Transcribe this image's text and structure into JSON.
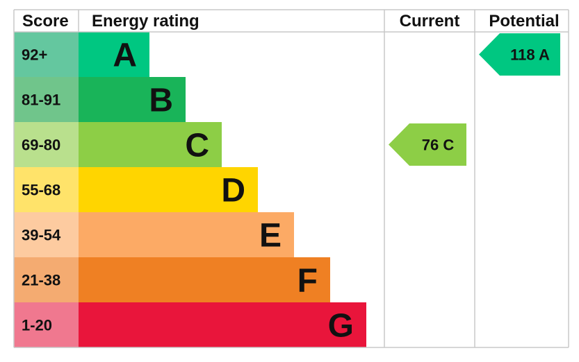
{
  "chart_data": {
    "type": "bar",
    "headers": {
      "score": "Score",
      "rating": "Energy rating",
      "current": "Current",
      "potential": "Potential"
    },
    "bands": [
      {
        "score": "92+",
        "letter": "A",
        "color": "#00c781",
        "score_bg": "#64c79f"
      },
      {
        "score": "81-91",
        "letter": "B",
        "color": "#19b459",
        "score_bg": "#70c58b"
      },
      {
        "score": "69-80",
        "letter": "C",
        "color": "#8dce46",
        "score_bg": "#b9e08d"
      },
      {
        "score": "55-68",
        "letter": "D",
        "color": "#ffd500",
        "score_bg": "#ffe36a"
      },
      {
        "score": "39-54",
        "letter": "E",
        "color": "#fcaa65",
        "score_bg": "#fdcba0"
      },
      {
        "score": "21-38",
        "letter": "F",
        "color": "#ef8023",
        "score_bg": "#f4ab71"
      },
      {
        "score": "1-20",
        "letter": "G",
        "color": "#e9153b",
        "score_bg": "#f0788f"
      }
    ],
    "current": {
      "value": 76,
      "letter": "C",
      "label": "76 C",
      "color": "#8dce46"
    },
    "potential": {
      "value": 118,
      "letter": "A",
      "label": "118 A",
      "color": "#00c781"
    }
  }
}
